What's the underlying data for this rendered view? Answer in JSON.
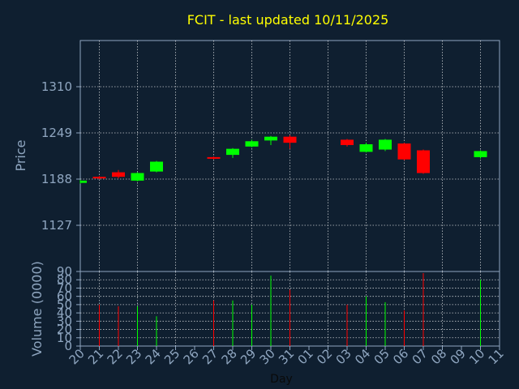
{
  "chart_data": {
    "type": "candlestick",
    "title": "FCIT - last updated 10/11/2025",
    "xlabel": "Day",
    "colors": {
      "background": "#0f1f30",
      "axis": "#8fa6c0",
      "text": "#8fa6c0",
      "title": "#ffff00",
      "up": "#00ff00",
      "down": "#ff0000",
      "grid": "#ffffff"
    },
    "x_tick_labels": [
      "20",
      "21",
      "22",
      "23",
      "24",
      "25",
      "26",
      "27",
      "28",
      "29",
      "30",
      "31",
      "01",
      "02",
      "03",
      "04",
      "05",
      "06",
      "07",
      "08",
      "09",
      "10",
      "11"
    ],
    "price_panel": {
      "ylabel": "Price",
      "ylim": [
        1066,
        1371
      ],
      "yticks": [
        1127,
        1188,
        1249,
        1310
      ],
      "grid": true
    },
    "volume_panel": {
      "ylabel": "Volume (0000)",
      "ylim": [
        0,
        90
      ],
      "yticks": [
        0,
        10,
        20,
        30,
        40,
        50,
        60,
        70,
        80,
        90
      ],
      "grid": true
    },
    "candles": [
      {
        "day": "20",
        "open": 1183,
        "close": 1186,
        "high": 1187,
        "low": 1182,
        "volume": 0
      },
      {
        "day": "21",
        "open": 1191,
        "close": 1189,
        "high": 1192,
        "low": 1188,
        "volume": 50
      },
      {
        "day": "22",
        "open": 1197,
        "close": 1191,
        "high": 1200,
        "low": 1189,
        "volume": 48
      },
      {
        "day": "23",
        "open": 1186,
        "close": 1196,
        "high": 1197,
        "low": 1185,
        "volume": 48
      },
      {
        "day": "24",
        "open": 1198,
        "close": 1211,
        "high": 1212,
        "low": 1197,
        "volume": 36
      },
      {
        "day": "27",
        "open": 1217,
        "close": 1215,
        "high": 1218,
        "low": 1214,
        "volume": 55
      },
      {
        "day": "28",
        "open": 1220,
        "close": 1228,
        "high": 1229,
        "low": 1216,
        "volume": 55
      },
      {
        "day": "29",
        "open": 1231,
        "close": 1238,
        "high": 1240,
        "low": 1230,
        "volume": 50
      },
      {
        "day": "30",
        "open": 1239,
        "close": 1244,
        "high": 1245,
        "low": 1233,
        "volume": 85
      },
      {
        "day": "31",
        "open": 1244,
        "close": 1236,
        "high": 1246,
        "low": 1228,
        "volume": 68
      },
      {
        "day": "03",
        "open": 1240,
        "close": 1233,
        "high": 1241,
        "low": 1231,
        "volume": 50
      },
      {
        "day": "04",
        "open": 1224,
        "close": 1234,
        "high": 1236,
        "low": 1223,
        "volume": 60
      },
      {
        "day": "05",
        "open": 1227,
        "close": 1240,
        "high": 1241,
        "low": 1225,
        "volume": 53
      },
      {
        "day": "06",
        "open": 1235,
        "close": 1214,
        "high": 1236,
        "low": 1213,
        "volume": 43
      },
      {
        "day": "07",
        "open": 1226,
        "close": 1196,
        "high": 1227,
        "low": 1195,
        "volume": 88
      },
      {
        "day": "10",
        "open": 1217,
        "close": 1225,
        "high": 1226,
        "low": 1215,
        "volume": 80
      }
    ]
  }
}
